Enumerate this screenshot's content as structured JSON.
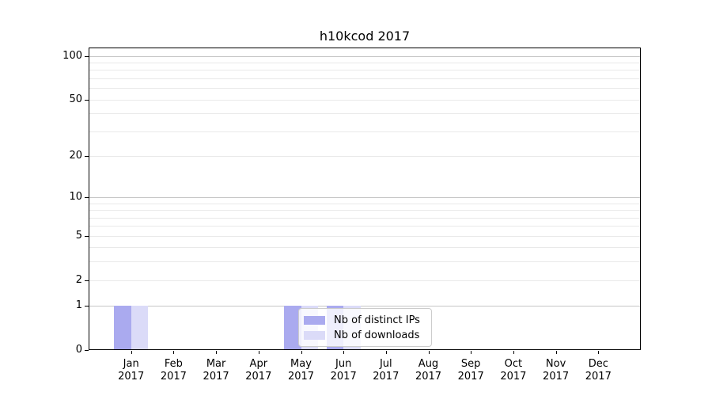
{
  "title": "h10kcod 2017",
  "colors": {
    "distinct_ips": "#aaaaef",
    "downloads": "#dbdbf8",
    "grid_major": "#c6c6c6",
    "grid_minor": "#e9e9e9",
    "axis": "#000000",
    "legend_border": "#cccccc"
  },
  "chart_data": {
    "type": "bar",
    "title": "h10kcod 2017",
    "categories": [
      "Jan",
      "Feb",
      "Mar",
      "Apr",
      "May",
      "Jun",
      "Jul",
      "Aug",
      "Sep",
      "Oct",
      "Nov",
      "Dec"
    ],
    "year_label": "2017",
    "series": [
      {
        "name": "Nb of distinct IPs",
        "color_key": "distinct_ips",
        "values": [
          1,
          0,
          0,
          0,
          1,
          1,
          0,
          0,
          0,
          0,
          0,
          0
        ]
      },
      {
        "name": "Nb of downloads",
        "color_key": "downloads",
        "values": [
          1,
          0,
          0,
          0,
          1,
          1,
          0,
          0,
          0,
          0,
          0,
          0
        ]
      }
    ],
    "yscale": "log1p",
    "ylim": [
      0,
      114
    ],
    "y_ticks_labeled": [
      0,
      1,
      2,
      5,
      10,
      20,
      50,
      100
    ],
    "y_gridlines_major": [
      1,
      10,
      100
    ],
    "y_gridlines_minor": [
      2,
      3,
      4,
      5,
      6,
      7,
      8,
      9,
      20,
      30,
      40,
      50,
      60,
      70,
      80,
      90
    ],
    "grid": true,
    "legend_position": "lower center"
  }
}
